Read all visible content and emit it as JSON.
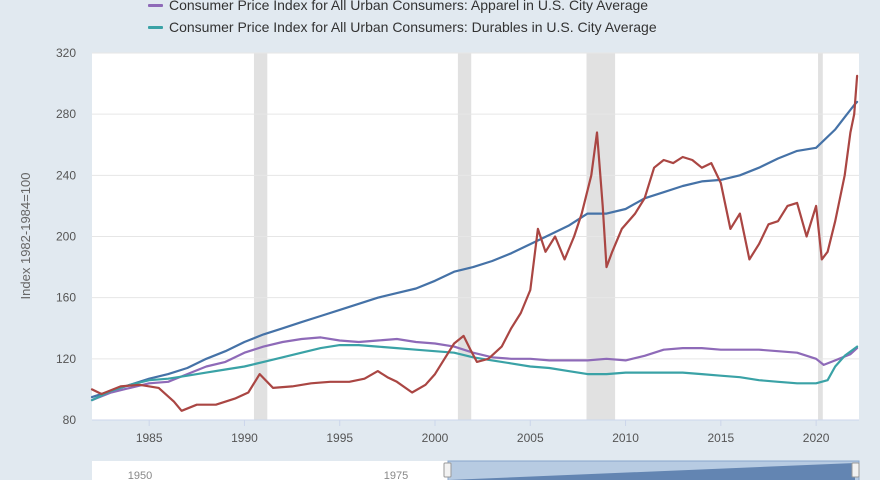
{
  "legend": {
    "items": [
      {
        "label": "Consumer Price Index for All Urban Consumers: Apparel in U.S. City Average",
        "color": "#8e6ab8"
      },
      {
        "label": "Consumer Price Index for All Urban Consumers: Durables in U.S. City Average",
        "color": "#3aa2a6"
      }
    ]
  },
  "navigator": {
    "labels": [
      "1950",
      "1975"
    ]
  },
  "chart_data": {
    "type": "line",
    "title": "",
    "xlabel": "",
    "ylabel": "Index 1982-1984=100",
    "xlim": [
      1982.0,
      2022.25
    ],
    "ylim": [
      80,
      320
    ],
    "xticks": [
      1985,
      1990,
      1995,
      2000,
      2005,
      2010,
      2015,
      2020
    ],
    "yticks": [
      80,
      120,
      160,
      200,
      240,
      280,
      320
    ],
    "grid": true,
    "legend_position": "top-left",
    "recessions": [
      [
        1990.5,
        1991.2
      ],
      [
        2001.2,
        2001.9
      ],
      [
        2007.95,
        2009.45
      ],
      [
        2020.1,
        2020.35
      ]
    ],
    "series": [
      {
        "color": "#4572a7",
        "x": [
          1982.0,
          1983,
          1984,
          1985,
          1986,
          1987,
          1988,
          1989,
          1990,
          1991,
          1992,
          1993,
          1994,
          1995,
          1996,
          1997,
          1998,
          1999,
          2000,
          2001,
          2002,
          2003,
          2004,
          2005,
          2006,
          2007,
          2008,
          2009,
          2010,
          2011,
          2012,
          2013,
          2014,
          2015,
          2016,
          2017,
          2018,
          2019,
          2020,
          2021,
          2021.5,
          2022.0,
          2022.15
        ],
        "values": [
          95,
          99,
          103,
          107,
          110,
          114,
          120,
          125,
          131,
          136,
          140,
          144,
          148,
          152,
          156,
          160,
          163,
          166,
          171,
          177,
          180,
          184,
          189,
          195,
          201,
          207,
          215,
          215,
          218,
          225,
          229,
          233,
          236,
          237,
          240,
          245,
          251,
          256,
          258,
          270,
          278,
          286,
          288
        ]
      },
      {
        "color": "#8e6ab8",
        "x": [
          1982.0,
          1983,
          1984,
          1985,
          1986,
          1987,
          1988,
          1989,
          1990,
          1991,
          1992,
          1993,
          1994,
          1995,
          1996,
          1997,
          1998,
          1999,
          2000,
          2001,
          2002,
          2003,
          2004,
          2005,
          2006,
          2007,
          2008,
          2009,
          2010,
          2011,
          2012,
          2013,
          2014,
          2015,
          2016,
          2017,
          2018,
          2019,
          2020,
          2020.4,
          2021,
          2021.8,
          2022.15
        ],
        "values": [
          93,
          98,
          101,
          104,
          105,
          110,
          115,
          118,
          124,
          128,
          131,
          133,
          134,
          132,
          131,
          132,
          133,
          131,
          130,
          128,
          124,
          121,
          120,
          120,
          119,
          119,
          119,
          120,
          119,
          122,
          126,
          127,
          127,
          126,
          126,
          126,
          125,
          124,
          120,
          116,
          119,
          123,
          127
        ]
      },
      {
        "color": "#3aa2a6",
        "x": [
          1982.0,
          1983,
          1984,
          1985,
          1986,
          1987,
          1988,
          1989,
          1990,
          1991,
          1992,
          1993,
          1994,
          1995,
          1996,
          1997,
          1998,
          1999,
          2000,
          2001,
          2002,
          2003,
          2004,
          2005,
          2006,
          2007,
          2008,
          2009,
          2010,
          2011,
          2012,
          2013,
          2014,
          2015,
          2016,
          2017,
          2018,
          2019,
          2020,
          2020.6,
          2021,
          2021.5,
          2022.15
        ],
        "values": [
          93,
          99,
          103,
          106,
          107,
          109,
          111,
          113,
          115,
          118,
          121,
          124,
          127,
          129,
          129,
          128,
          127,
          126,
          125,
          124,
          121,
          119,
          117,
          115,
          114,
          112,
          110,
          110,
          111,
          111,
          111,
          111,
          110,
          109,
          108,
          106,
          105,
          104,
          104,
          106,
          115,
          122,
          128
        ]
      },
      {
        "color": "#aa4643",
        "x": [
          1982.0,
          1982.5,
          1983.5,
          1984.5,
          1985.5,
          1986.3,
          1986.7,
          1987.5,
          1988.5,
          1989.5,
          1990.2,
          1990.8,
          1991.5,
          1992.5,
          1993.5,
          1994.5,
          1995.5,
          1996.3,
          1997.0,
          1997.5,
          1998.0,
          1998.8,
          1999.5,
          2000.0,
          2000.5,
          2001.0,
          2001.5,
          2001.9,
          2002.2,
          2002.8,
          2003.5,
          2004.0,
          2004.5,
          2005.0,
          2005.4,
          2005.8,
          2006.3,
          2006.8,
          2007.3,
          2007.7,
          2008.2,
          2008.5,
          2008.8,
          2009.0,
          2009.3,
          2009.8,
          2010.5,
          2011.0,
          2011.5,
          2012.0,
          2012.5,
          2013.0,
          2013.5,
          2014.0,
          2014.5,
          2015.0,
          2015.5,
          2016.0,
          2016.5,
          2017.0,
          2017.5,
          2018.0,
          2018.5,
          2019.0,
          2019.5,
          2020.0,
          2020.3,
          2020.6,
          2021.0,
          2021.5,
          2021.8,
          2022.0,
          2022.15
        ],
        "values": [
          100,
          97,
          102,
          103,
          101,
          92,
          86,
          90,
          90,
          94,
          98,
          110,
          101,
          102,
          104,
          105,
          105,
          107,
          112,
          108,
          105,
          98,
          103,
          110,
          120,
          130,
          135,
          125,
          118,
          120,
          128,
          140,
          150,
          165,
          205,
          190,
          200,
          185,
          200,
          215,
          240,
          268,
          220,
          180,
          190,
          205,
          215,
          225,
          245,
          250,
          248,
          252,
          250,
          245,
          248,
          235,
          205,
          215,
          185,
          195,
          208,
          210,
          220,
          222,
          200,
          220,
          185,
          190,
          210,
          240,
          268,
          280,
          305
        ]
      }
    ]
  }
}
